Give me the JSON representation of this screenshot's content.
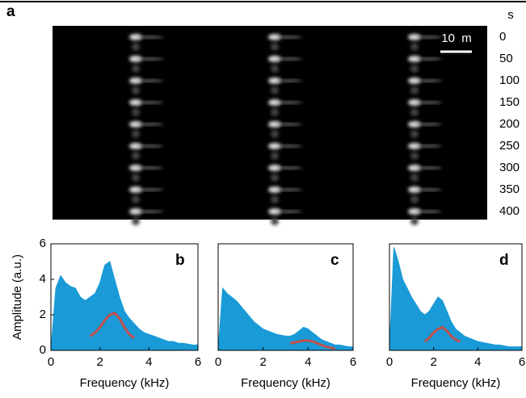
{
  "chart_data": [
    {
      "type": "image",
      "panel_label": "a",
      "scale_bar_label": "10  m",
      "y_label": "s",
      "ylim": [
        -26,
        418
      ],
      "yticks": [
        0,
        50,
        100,
        150,
        200,
        250,
        300,
        350,
        400
      ]
    },
    {
      "type": "area",
      "panel_label": "b",
      "xlabel": "Frequency (kHz)",
      "ylabel": "Amplitude (a.u.)",
      "xlim": [
        0,
        6
      ],
      "xticks": [
        0,
        2,
        4,
        6
      ],
      "ylim": [
        0,
        6
      ],
      "yticks": [
        0,
        2,
        4,
        6
      ],
      "series": [
        {
          "color": "#1a9ad6",
          "x": [
            0,
            0.2,
            0.4,
            0.6,
            0.8,
            1,
            1.2,
            1.4,
            1.6,
            1.8,
            2,
            2.2,
            2.4,
            2.6,
            2.8,
            3,
            3.2,
            3.4,
            3.6,
            3.8,
            4,
            4.2,
            4.4,
            4.6,
            4.8,
            5,
            5.2,
            5.4,
            5.6,
            5.8,
            6
          ],
          "values": [
            0,
            3.5,
            4.2,
            3.8,
            3.6,
            3.5,
            3.0,
            2.8,
            3.0,
            3.2,
            3.8,
            4.8,
            5.0,
            4.0,
            3.0,
            2.2,
            1.8,
            1.5,
            1.2,
            1.0,
            0.9,
            0.8,
            0.7,
            0.6,
            0.5,
            0.5,
            0.4,
            0.4,
            0.35,
            0.3,
            0.3
          ]
        },
        {
          "color": "#c0504d",
          "x": [
            1.6,
            1.8,
            2,
            2.2,
            2.4,
            2.6,
            2.8,
            3,
            3.2,
            3.4
          ],
          "values": [
            0.8,
            1.0,
            1.3,
            1.7,
            2.0,
            2.1,
            1.8,
            1.3,
            0.9,
            0.7
          ]
        }
      ]
    },
    {
      "type": "area",
      "panel_label": "c",
      "xlabel": "Frequency (kHz)",
      "xlim": [
        0,
        6
      ],
      "xticks": [
        0,
        2,
        4,
        6
      ],
      "ylim": [
        0,
        6
      ],
      "series": [
        {
          "color": "#1a9ad6",
          "x": [
            0,
            0.2,
            0.4,
            0.6,
            0.8,
            1,
            1.2,
            1.4,
            1.6,
            1.8,
            2,
            2.2,
            2.4,
            2.6,
            2.8,
            3,
            3.2,
            3.4,
            3.6,
            3.8,
            4,
            4.2,
            4.4,
            4.6,
            4.8,
            5,
            5.2,
            5.4,
            5.6,
            5.8,
            6
          ],
          "values": [
            0,
            3.5,
            3.2,
            3.0,
            2.8,
            2.5,
            2.2,
            1.9,
            1.6,
            1.4,
            1.2,
            1.1,
            1.0,
            0.9,
            0.85,
            0.8,
            0.8,
            0.9,
            1.1,
            1.3,
            1.2,
            1.0,
            0.8,
            0.6,
            0.5,
            0.4,
            0.3,
            0.3,
            0.25,
            0.2,
            0.2
          ]
        },
        {
          "color": "#c0504d",
          "x": [
            3.2,
            3.4,
            3.6,
            3.8,
            4,
            4.2,
            4.4,
            4.6,
            4.8,
            5,
            5.2
          ],
          "values": [
            0.4,
            0.45,
            0.5,
            0.55,
            0.55,
            0.5,
            0.4,
            0.3,
            0.2,
            0.15,
            0.1
          ]
        }
      ]
    },
    {
      "type": "area",
      "panel_label": "d",
      "xlabel": "Frequency (kHz)",
      "xlim": [
        0,
        6
      ],
      "xticks": [
        0,
        2,
        4,
        6
      ],
      "ylim": [
        0,
        6
      ],
      "series": [
        {
          "color": "#1a9ad6",
          "x": [
            0,
            0.2,
            0.4,
            0.6,
            0.8,
            1,
            1.2,
            1.4,
            1.6,
            1.8,
            2,
            2.2,
            2.4,
            2.6,
            2.8,
            3,
            3.2,
            3.4,
            3.6,
            3.8,
            4,
            4.2,
            4.4,
            4.6,
            4.8,
            5,
            5.2,
            5.4,
            5.6,
            5.8,
            6
          ],
          "values": [
            0,
            5.8,
            5.0,
            4.0,
            3.5,
            3.0,
            2.6,
            2.2,
            2.0,
            2.2,
            2.6,
            3.0,
            2.8,
            2.2,
            1.6,
            1.2,
            1.0,
            0.8,
            0.7,
            0.6,
            0.5,
            0.45,
            0.4,
            0.35,
            0.3,
            0.3,
            0.25,
            0.2,
            0.2,
            0.2,
            0.2
          ]
        },
        {
          "color": "#c0504d",
          "x": [
            1.6,
            1.8,
            2,
            2.2,
            2.4,
            2.6,
            2.8,
            3,
            3.2
          ],
          "values": [
            0.5,
            0.7,
            1.0,
            1.2,
            1.3,
            1.1,
            0.8,
            0.6,
            0.5
          ]
        }
      ]
    }
  ]
}
